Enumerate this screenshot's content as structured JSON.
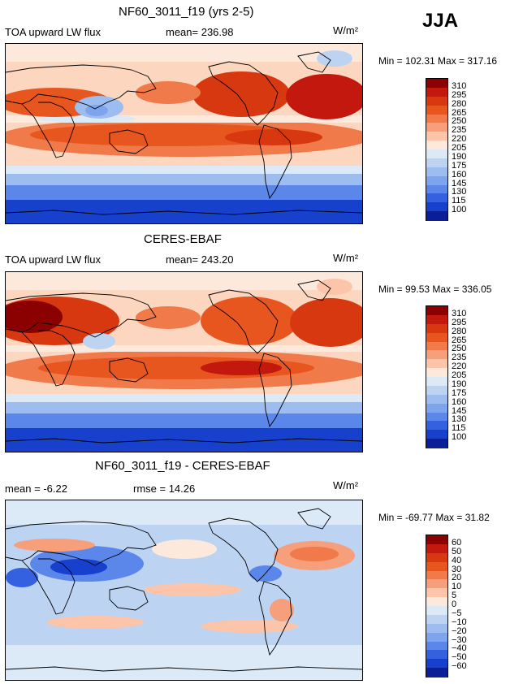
{
  "season": "JJA",
  "panels": [
    {
      "id": "model",
      "title": "NF60_3011_f19 (yrs 2-5)",
      "left_label": "TOA upward LW flux",
      "stat1": "mean= 236.98",
      "stat2": "",
      "units": "W/m²",
      "minmax": "Min = 102.31  Max = 317.16",
      "colorbar_levels": [
        "310",
        "295",
        "280",
        "265",
        "250",
        "235",
        "220",
        "205",
        "190",
        "175",
        "160",
        "145",
        "130",
        "115",
        "100"
      ],
      "colorbar_colors": [
        "#8b0000",
        "#c2180e",
        "#d8380f",
        "#e8561f",
        "#f07a49",
        "#f79e7b",
        "#fcc5a9",
        "#fde9dc",
        "#dce9f7",
        "#bcd3f2",
        "#9dbcf0",
        "#7ea4ee",
        "#5b86ea",
        "#3461e0",
        "#1740cc",
        "#0a1e96"
      ]
    },
    {
      "id": "obs",
      "title": "CERES-EBAF",
      "left_label": "TOA upward LW flux",
      "stat1": "mean= 243.20",
      "stat2": "",
      "units": "W/m²",
      "minmax": "Min =  99.53  Max = 336.05",
      "colorbar_levels": [
        "310",
        "295",
        "280",
        "265",
        "250",
        "235",
        "220",
        "205",
        "190",
        "175",
        "160",
        "145",
        "130",
        "115",
        "100"
      ],
      "colorbar_colors": [
        "#8b0000",
        "#c2180e",
        "#d8380f",
        "#e8561f",
        "#f07a49",
        "#f79e7b",
        "#fcc5a9",
        "#fde9dc",
        "#dce9f7",
        "#bcd3f2",
        "#9dbcf0",
        "#7ea4ee",
        "#5b86ea",
        "#3461e0",
        "#1740cc",
        "#0a1e96"
      ]
    },
    {
      "id": "diff",
      "title": "NF60_3011_f19 - CERES-EBAF",
      "left_label": "mean =  -6.22",
      "stat1": "",
      "stat2": "rmse =  14.26",
      "units": "W/m²",
      "minmax": "Min = -69.77  Max =  31.82",
      "colorbar_levels": [
        "60",
        "50",
        "40",
        "30",
        "20",
        "10",
        "5",
        "0",
        "−5",
        "−10",
        "−20",
        "−30",
        "−40",
        "−50",
        "−60"
      ],
      "colorbar_colors": [
        "#8b0000",
        "#c2180e",
        "#d8380f",
        "#e8561f",
        "#f07a49",
        "#f79e7b",
        "#fcc5a9",
        "#fde9dc",
        "#dce9f7",
        "#bcd3f2",
        "#9dbcf0",
        "#7ea4ee",
        "#5b86ea",
        "#3461e0",
        "#1740cc",
        "#0a1e96"
      ]
    }
  ],
  "chart_data": [
    {
      "type": "heatmap",
      "title": "NF60_3011_f19 (yrs 2-5)",
      "variable": "TOA upward LW flux",
      "units": "W/m²",
      "season": "JJA",
      "mean": 236.98,
      "min": 102.31,
      "max": 317.16,
      "contour_levels": [
        100,
        115,
        130,
        145,
        160,
        175,
        190,
        205,
        220,
        235,
        250,
        265,
        280,
        295,
        310
      ]
    },
    {
      "type": "heatmap",
      "title": "CERES-EBAF",
      "variable": "TOA upward LW flux",
      "units": "W/m²",
      "season": "JJA",
      "mean": 243.2,
      "min": 99.53,
      "max": 336.05,
      "contour_levels": [
        100,
        115,
        130,
        145,
        160,
        175,
        190,
        205,
        220,
        235,
        250,
        265,
        280,
        295,
        310
      ]
    },
    {
      "type": "heatmap",
      "title": "NF60_3011_f19 - CERES-EBAF",
      "units": "W/m²",
      "season": "JJA",
      "mean": -6.22,
      "rmse": 14.26,
      "min": -69.77,
      "max": 31.82,
      "contour_levels": [
        -60,
        -50,
        -40,
        -30,
        -20,
        -10,
        -5,
        0,
        5,
        10,
        20,
        30,
        40,
        50,
        60
      ]
    }
  ]
}
